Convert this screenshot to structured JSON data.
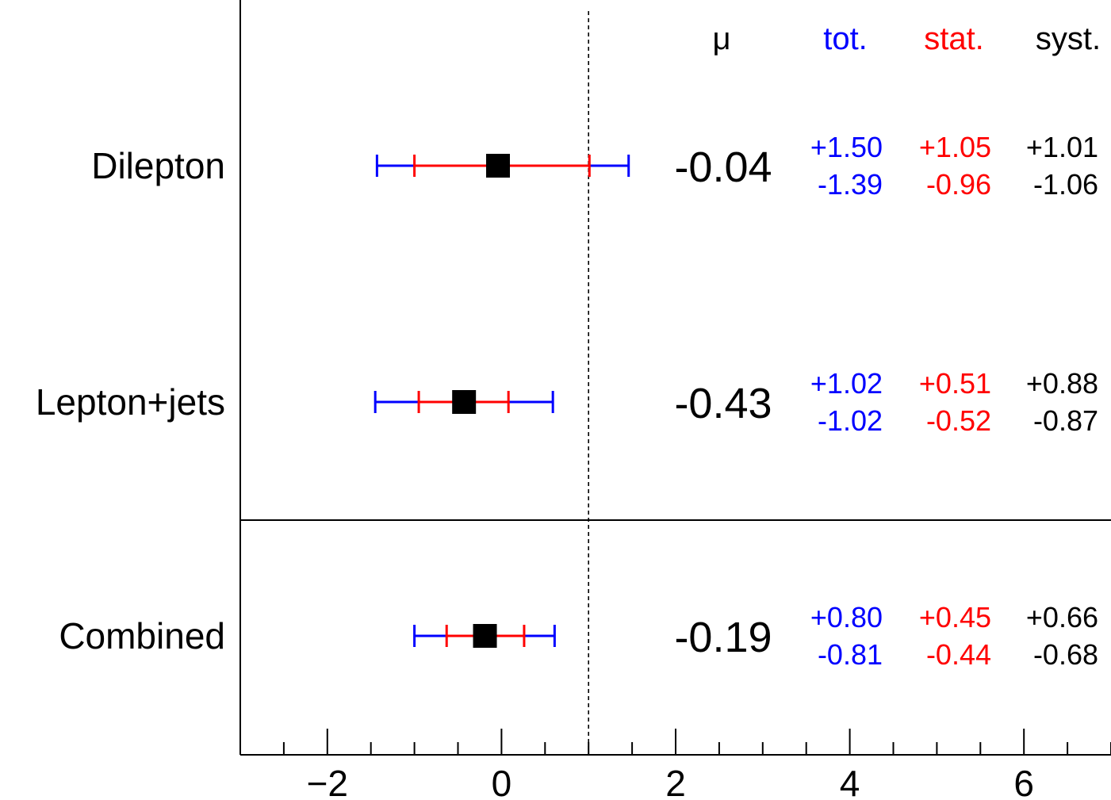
{
  "chart_data": {
    "type": "scatter",
    "subtype": "summary-plot-with-error-bars",
    "xlim": [
      -3,
      7
    ],
    "x_ticks": [
      -2,
      0,
      2,
      4,
      6
    ],
    "x_tick_labels": [
      "−2",
      "0",
      "2",
      "4",
      "6"
    ],
    "reference_line": 1,
    "header": {
      "mu": "μ",
      "tot": "tot.",
      "stat": "stat.",
      "syst": "syst."
    },
    "colors": {
      "tot": "#0000ff",
      "stat": "#ff0000",
      "syst": "#000000",
      "marker": "#000000"
    },
    "rows": [
      {
        "label": "Dilepton",
        "mu": -0.04,
        "mu_text": "-0.04",
        "tot": {
          "up": 1.5,
          "down": 1.39,
          "up_text": "+1.50",
          "down_text": "-1.39"
        },
        "stat": {
          "up": 1.05,
          "down": 0.96,
          "up_text": "+1.05",
          "down_text": "-0.96"
        },
        "syst": {
          "up": 1.01,
          "down": 1.06,
          "up_text": "+1.01",
          "down_text": "-1.06"
        }
      },
      {
        "label": "Lepton+jets",
        "mu": -0.43,
        "mu_text": "-0.43",
        "tot": {
          "up": 1.02,
          "down": 1.02,
          "up_text": "+1.02",
          "down_text": "-1.02"
        },
        "stat": {
          "up": 0.51,
          "down": 0.52,
          "up_text": "+0.51",
          "down_text": "-0.52"
        },
        "syst": {
          "up": 0.88,
          "down": 0.87,
          "up_text": "+0.88",
          "down_text": "-0.87"
        }
      },
      {
        "label": "Combined",
        "mu": -0.19,
        "mu_text": "-0.19",
        "tot": {
          "up": 0.8,
          "down": 0.81,
          "up_text": "+0.80",
          "down_text": "-0.81"
        },
        "stat": {
          "up": 0.45,
          "down": 0.44,
          "up_text": "+0.45",
          "down_text": "-0.44"
        },
        "syst": {
          "up": 0.66,
          "down": 0.68,
          "up_text": "+0.66",
          "down_text": "-0.68"
        }
      }
    ]
  }
}
